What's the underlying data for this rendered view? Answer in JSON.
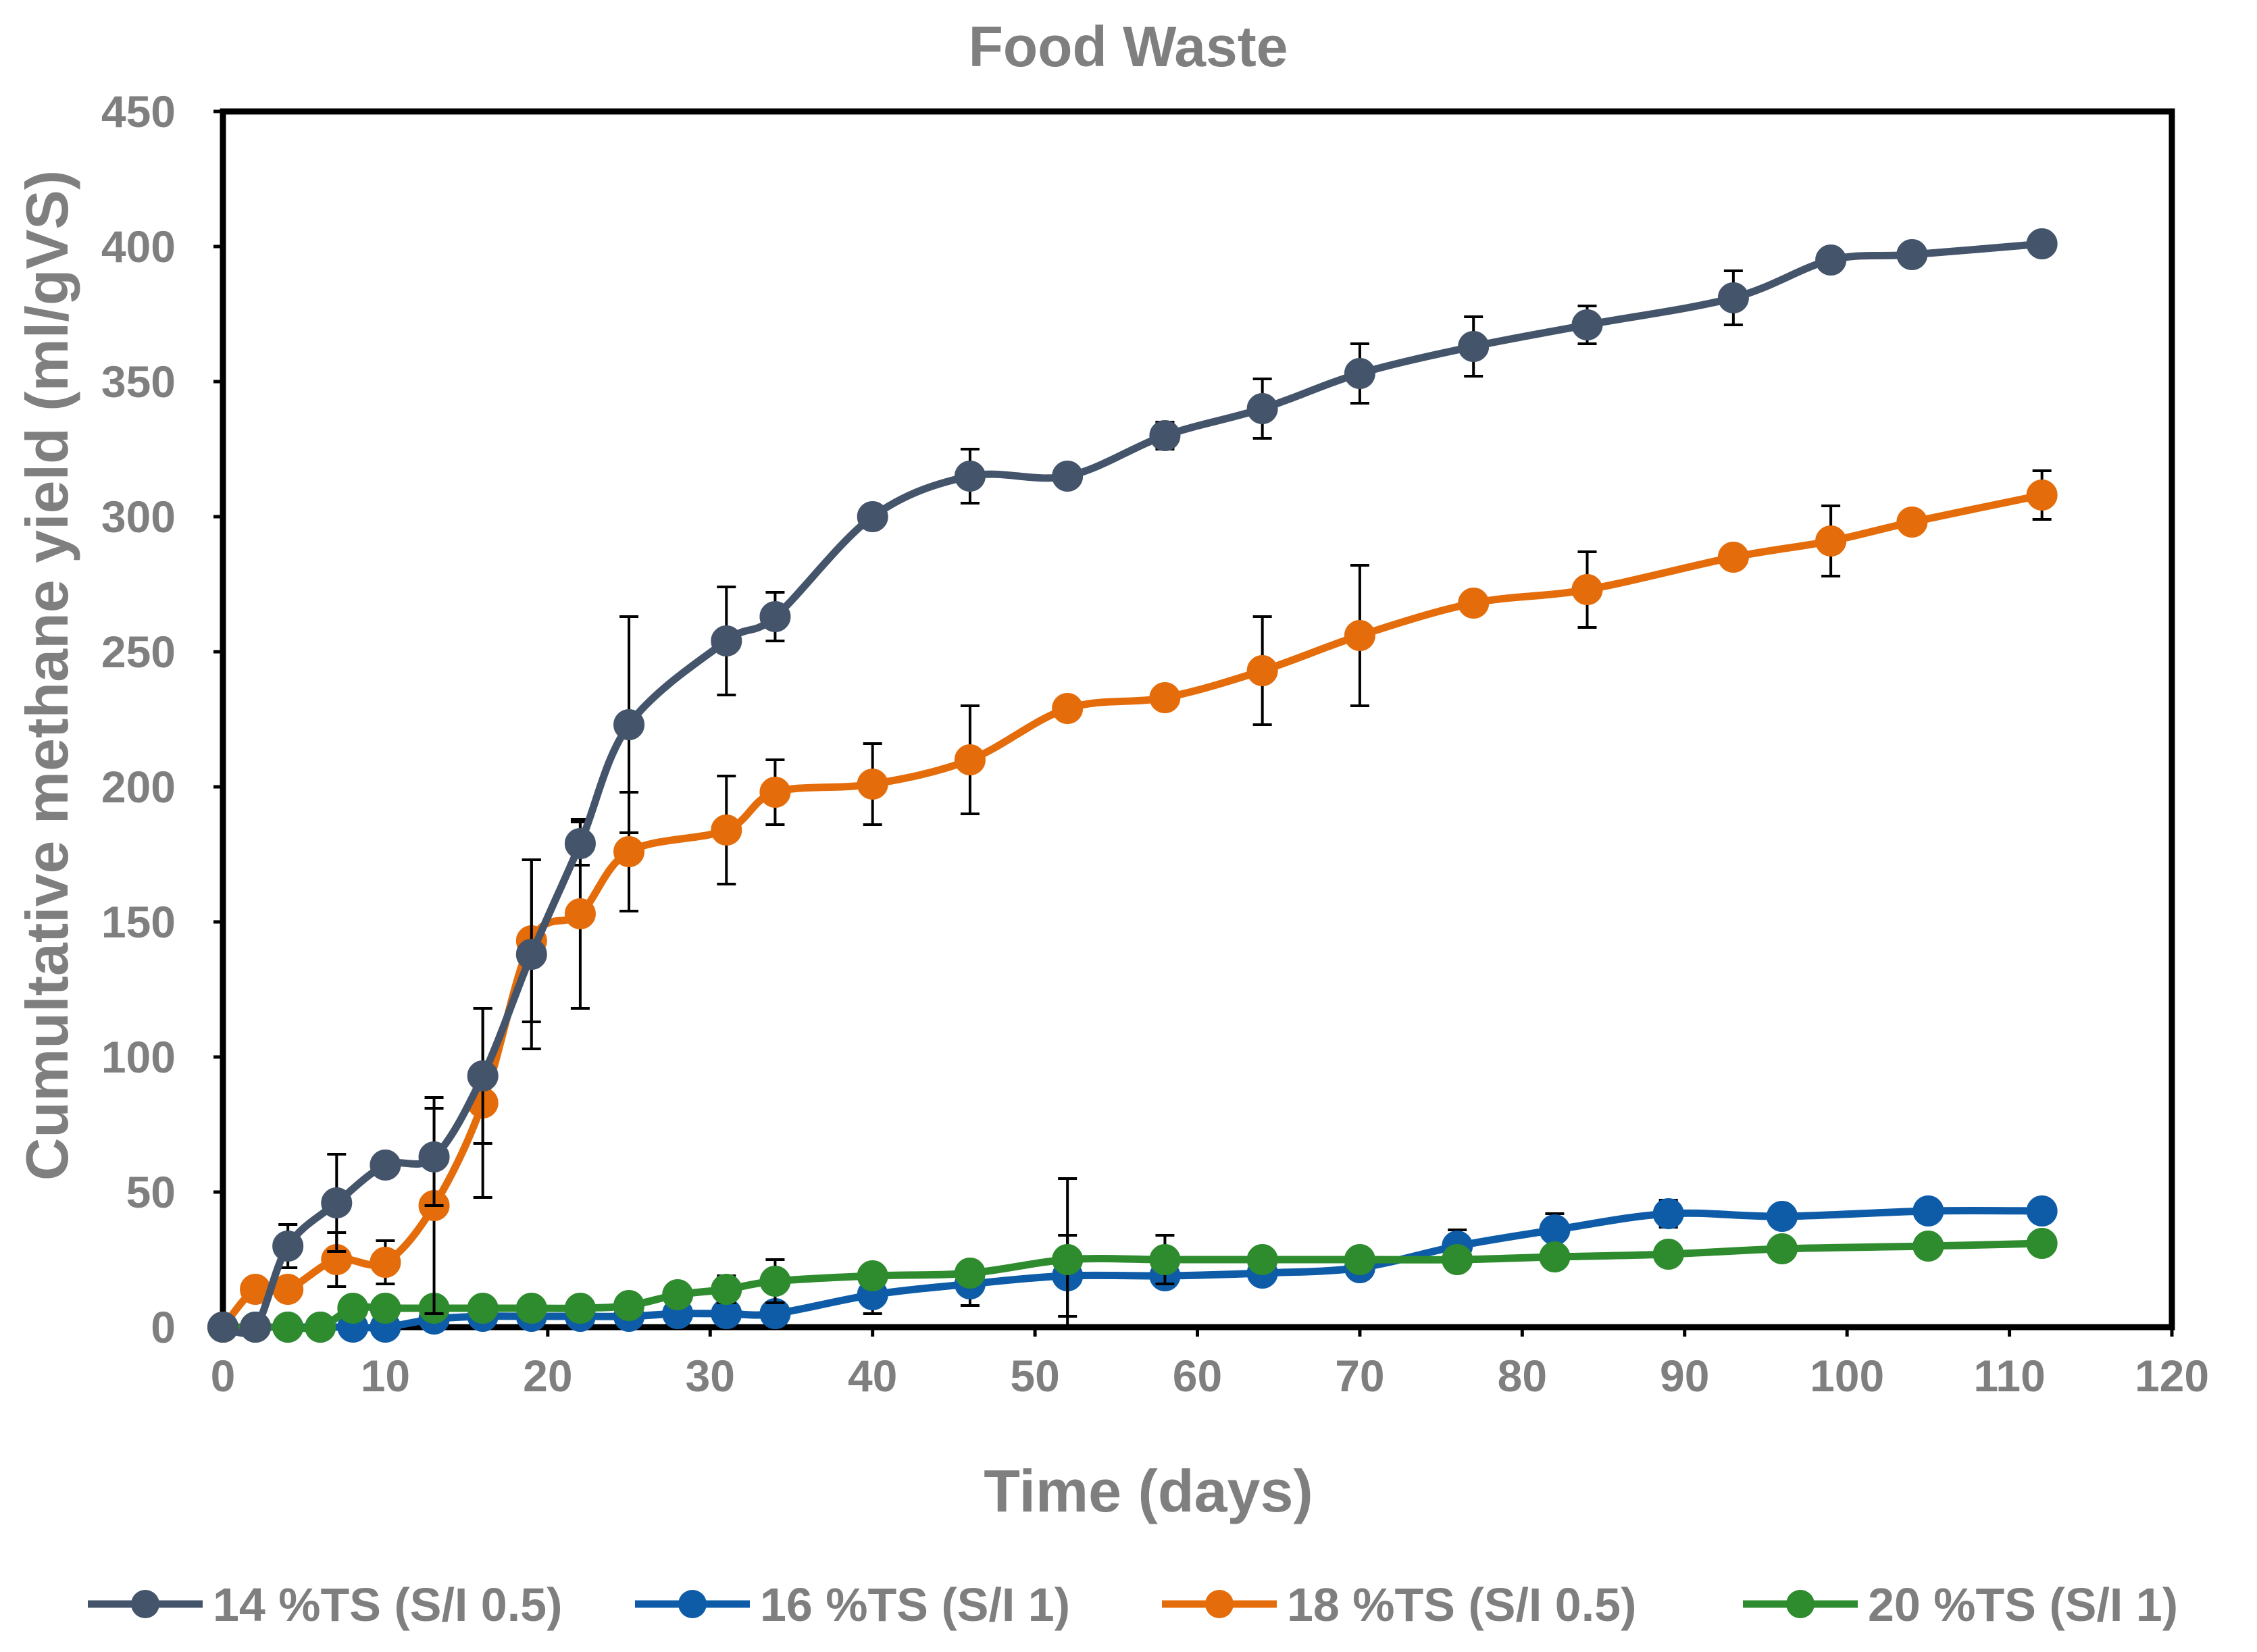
{
  "chart_data": {
    "type": "line",
    "title": "Food Waste",
    "xlabel": "Time (days)",
    "ylabel": "Cumultative methane yield (ml/gVS)",
    "xlim": [
      0,
      120
    ],
    "ylim": [
      0,
      450
    ],
    "xticks": [
      "0",
      "10",
      "20",
      "30",
      "40",
      "50",
      "60",
      "70",
      "80",
      "90",
      "100",
      "110",
      "120"
    ],
    "yticks": [
      "0",
      "50",
      "100",
      "150",
      "200",
      "250",
      "300",
      "350",
      "400",
      "450"
    ],
    "grid": false,
    "legend_position": "bottom",
    "series": [
      {
        "name": "14 %TS (S/I 0.5)",
        "color": "#44546a",
        "x": [
          0,
          2,
          4,
          7,
          10,
          13,
          16,
          19,
          22,
          25,
          31,
          34,
          40,
          46,
          52,
          58,
          64,
          70,
          77,
          84,
          93,
          99,
          104,
          112
        ],
        "y": [
          0,
          0,
          30,
          46,
          60,
          63,
          93,
          138,
          179,
          223,
          254,
          263,
          300,
          315,
          315,
          330,
          340,
          353,
          363,
          371,
          381,
          395,
          397,
          401
        ],
        "err": [
          0,
          0,
          8,
          18,
          4,
          18,
          25,
          35,
          8,
          40,
          20,
          9,
          0,
          10,
          3,
          5,
          11,
          11,
          11,
          7,
          10,
          0,
          0,
          0
        ]
      },
      {
        "name": "16 %TS (S/I  1)",
        "color": "#0e5ca8",
        "x": [
          0,
          2,
          4,
          6,
          8,
          10,
          13,
          16,
          19,
          22,
          25,
          28,
          31,
          34,
          40,
          46,
          52,
          58,
          64,
          70,
          76,
          82,
          89,
          96,
          105,
          112
        ],
        "y": [
          0,
          0,
          0,
          0,
          0,
          0,
          3,
          4,
          4,
          4,
          4,
          5,
          5,
          5,
          12,
          16,
          19,
          19,
          20,
          22,
          30,
          36,
          42,
          41,
          43,
          43
        ],
        "err": [
          0,
          0,
          0,
          0,
          0,
          0,
          0,
          0,
          0,
          0,
          0,
          0,
          0,
          0,
          7,
          8,
          15,
          0,
          0,
          0,
          6,
          6,
          5,
          0,
          0,
          0
        ]
      },
      {
        "name": "18 %TS (S/I  0.5)",
        "color": "#e46c0a",
        "x": [
          0,
          2,
          4,
          7,
          10,
          13,
          16,
          19,
          22,
          25,
          31,
          34,
          40,
          46,
          52,
          58,
          64,
          70,
          77,
          84,
          93,
          99,
          104,
          112
        ],
        "y": [
          0,
          14,
          14,
          25,
          24,
          45,
          83,
          143,
          153,
          176,
          184,
          198,
          201,
          210,
          229,
          233,
          243,
          256,
          268,
          273,
          285,
          291,
          298,
          308
        ],
        "err": [
          0,
          0,
          0,
          10,
          8,
          40,
          35,
          30,
          35,
          22,
          20,
          12,
          15,
          20,
          0,
          0,
          20,
          26,
          0,
          14,
          0,
          13,
          0,
          9
        ]
      },
      {
        "name": "20 %TS (S/I  1)",
        "color": "#2e8b2e",
        "x": [
          0,
          2,
          4,
          6,
          8,
          10,
          13,
          16,
          19,
          22,
          25,
          28,
          31,
          34,
          40,
          46,
          52,
          58,
          64,
          70,
          76,
          82,
          89,
          96,
          105,
          112
        ],
        "y": [
          0,
          0,
          0,
          0,
          7,
          7,
          7,
          7,
          7,
          7,
          8,
          12,
          14,
          17,
          19,
          20,
          25,
          25,
          25,
          25,
          25,
          26,
          27,
          29,
          30,
          31
        ],
        "err": [
          0,
          0,
          0,
          0,
          0,
          0,
          0,
          0,
          0,
          0,
          0,
          0,
          5,
          8,
          0,
          0,
          30,
          9,
          0,
          0,
          0,
          0,
          0,
          0,
          0,
          0
        ]
      }
    ]
  }
}
